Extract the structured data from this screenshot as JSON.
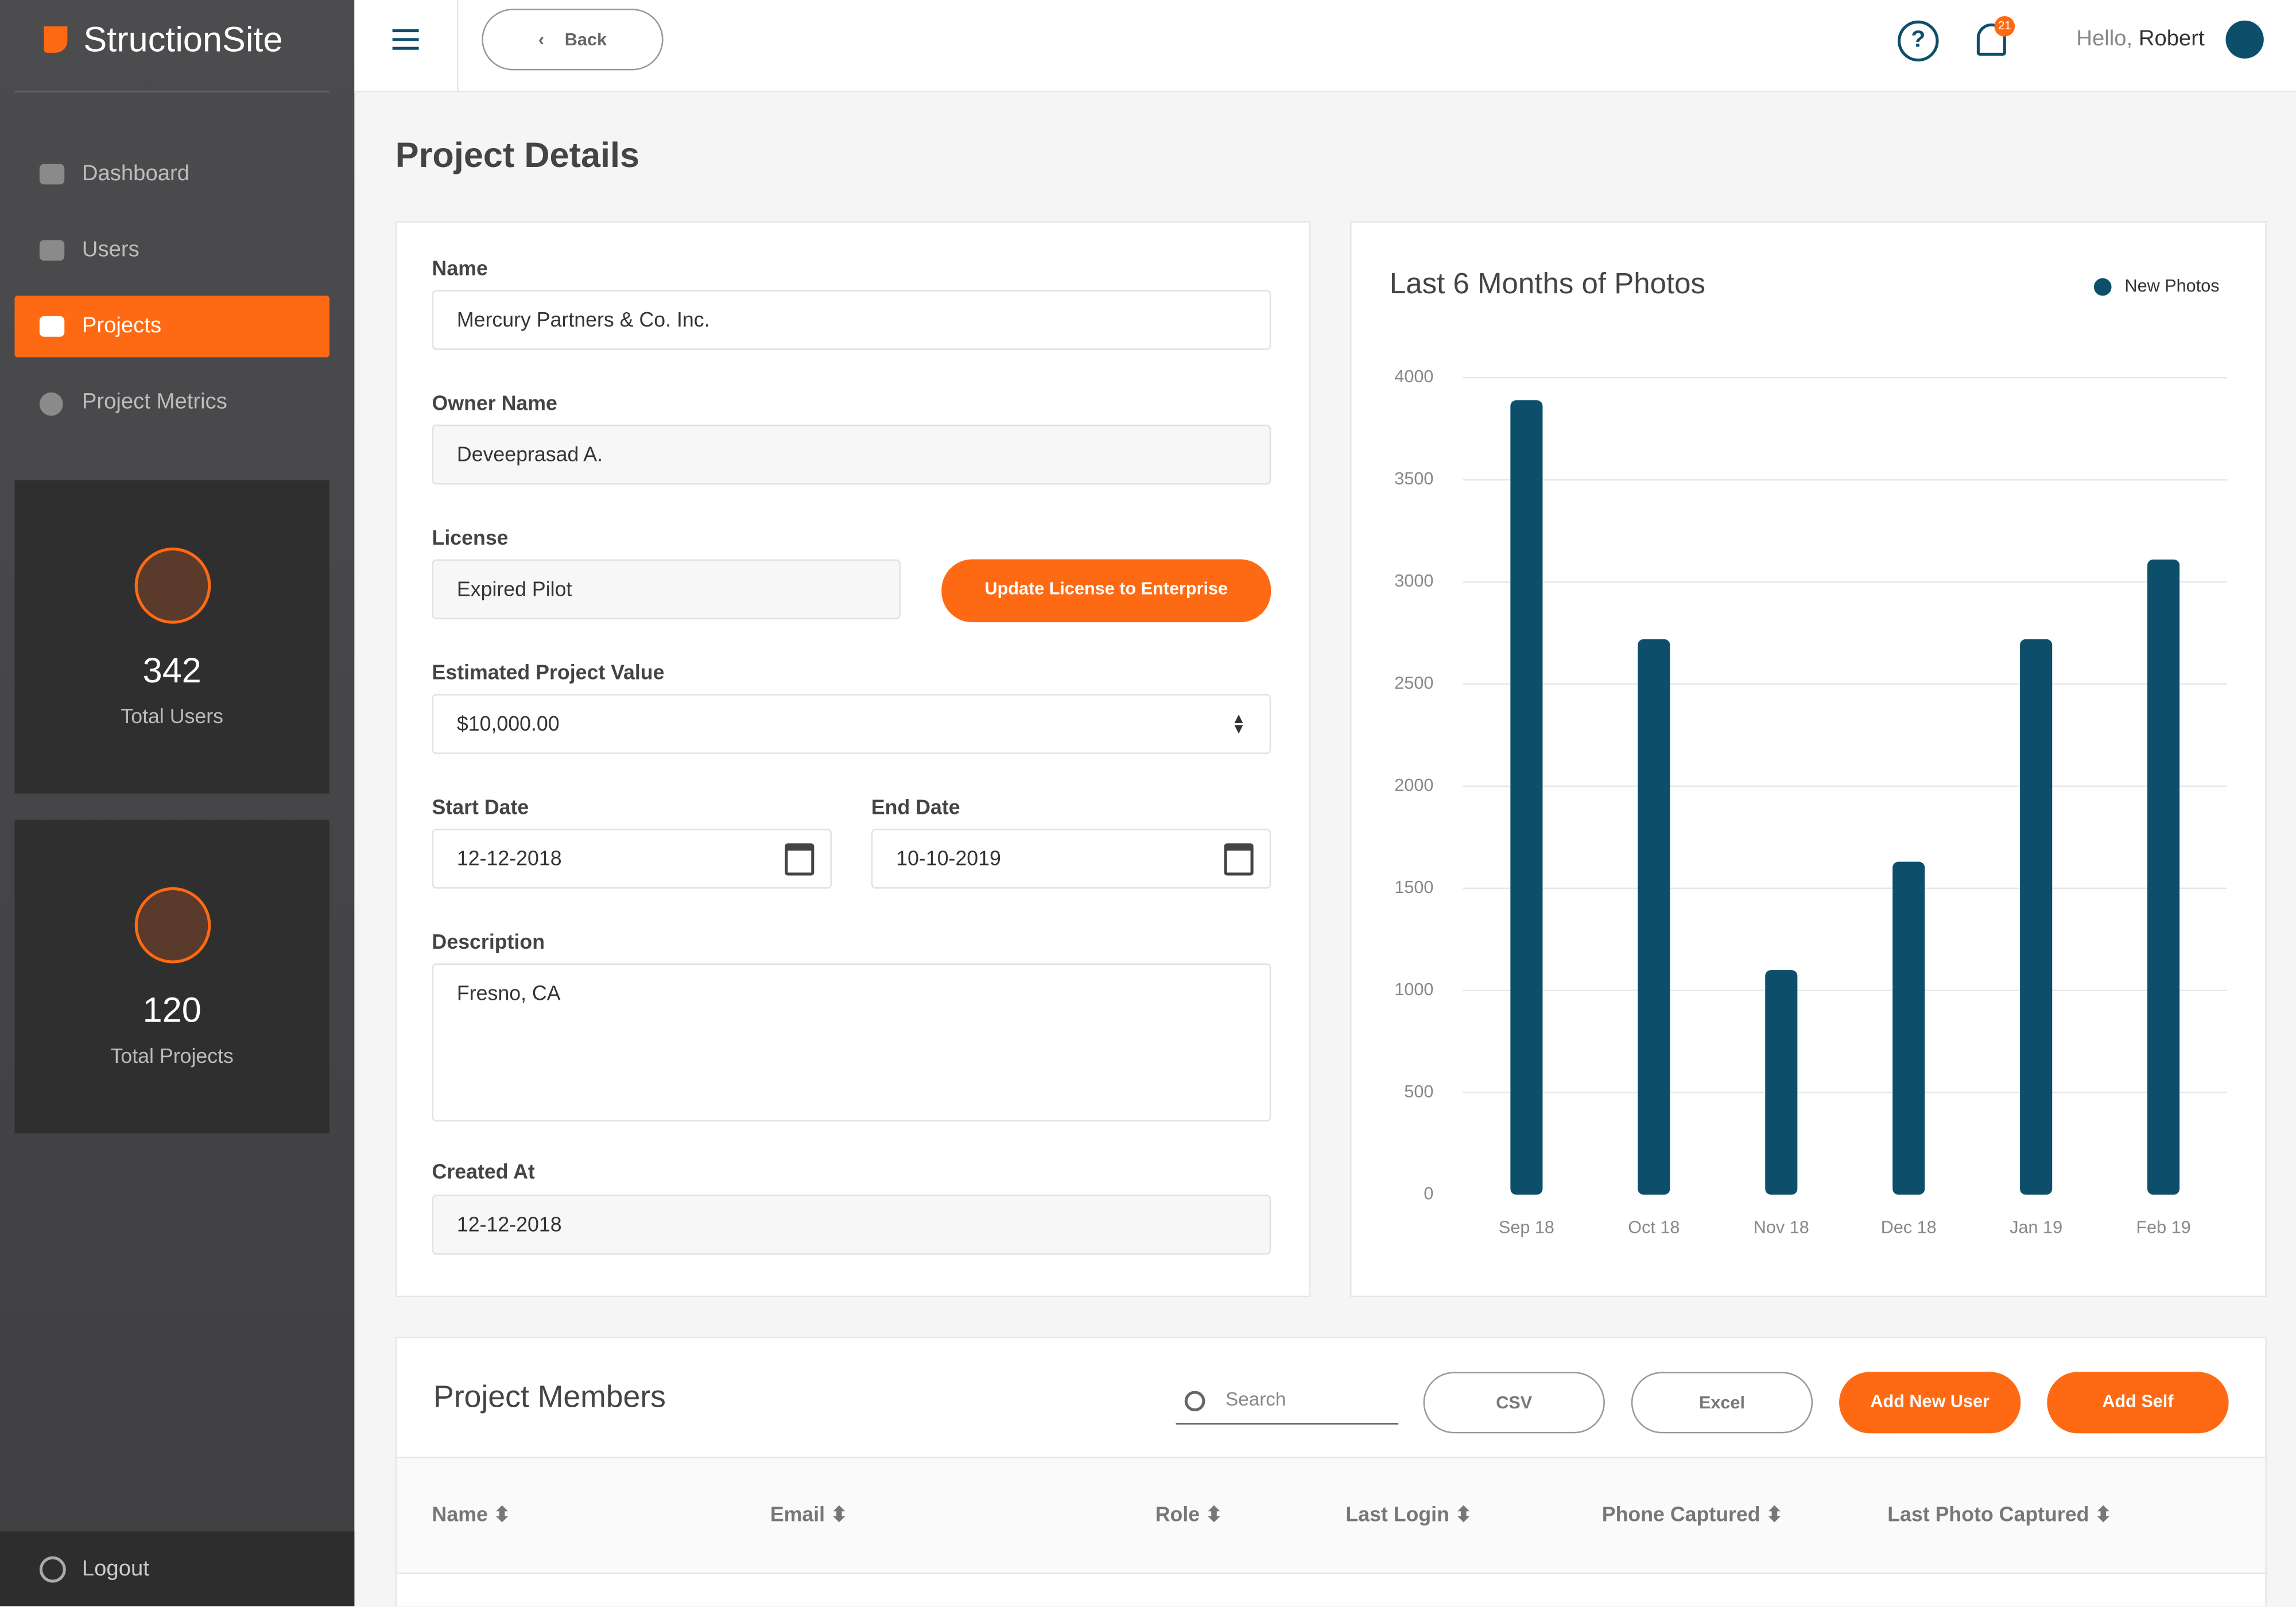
{
  "sidebar": {
    "brand": "StructionSite",
    "nav": [
      "Dashboard",
      "Users",
      "Projects",
      "Project Metrics"
    ],
    "stats": [
      {
        "value": 342,
        "label": "Total Users"
      },
      {
        "value": 120,
        "label": "Total Projects"
      }
    ],
    "logout": "Logout"
  },
  "topbar": {
    "back": "Back",
    "notifications": 21,
    "greeting": "Hello,",
    "user": "Robert"
  },
  "page_title": "Project Details",
  "form": {
    "name": {
      "label": "Name",
      "value": "Mercury Partners & Co. Inc."
    },
    "owner": {
      "label": "Owner Name",
      "value": "Deveeprasad A."
    },
    "license": {
      "label": "License",
      "value": "Expired Pilot",
      "button": "Update License to Enterprise"
    },
    "project_value": {
      "label": "Estimated Project Value",
      "value": "$10,000.00"
    },
    "start_date": {
      "label": "Start Date",
      "value": "12-12-2018"
    },
    "end_date": {
      "label": "End Date",
      "value": "10-10-2019"
    },
    "description": {
      "label": "Description",
      "value": "Fresno, CA"
    },
    "created_at": {
      "label": "Created At",
      "value": "12-12-2018"
    }
  },
  "chart_data": {
    "type": "bar",
    "title": "Last 6 Months of Photos",
    "categories": [
      "Sep 18",
      "Oct 18",
      "Nov 18",
      "Dec 18",
      "Jan 19",
      "Feb 19"
    ],
    "series": [
      {
        "name": "New Photos",
        "color": "#0d4f6b",
        "values": [
          3890,
          2720,
          1100,
          1630,
          2720,
          3110
        ]
      }
    ],
    "ylim": [
      0,
      4000
    ],
    "yticks": [
      0,
      500,
      1000,
      1500,
      2000,
      2500,
      3000,
      3500,
      4000
    ],
    "grid": true
  },
  "members": {
    "title": "Project Members",
    "search": "Search",
    "buttons": [
      "CSV",
      "Excel",
      "Add New User",
      "Add Self"
    ],
    "columns": [
      "Name",
      "Email",
      "Role",
      "Last Login",
      "Phone Captured",
      "Last Photo Captured"
    ]
  }
}
